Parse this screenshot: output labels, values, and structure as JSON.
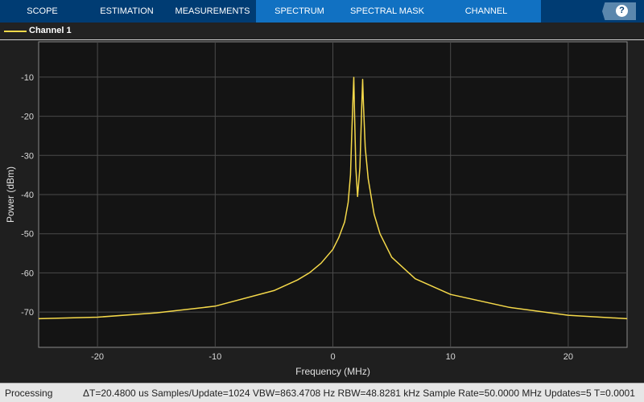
{
  "toolstrip": {
    "tabs": [
      {
        "label": "SCOPE",
        "selected": false
      },
      {
        "label": "ESTIMATION",
        "selected": false
      },
      {
        "label": "MEASUREMENTS",
        "selected": false
      },
      {
        "label": "SPECTRUM",
        "selected": true
      },
      {
        "label": "SPECTRAL MASK",
        "selected": true
      },
      {
        "label": "CHANNEL MEASUREMENTS",
        "selected": true
      }
    ],
    "help_label": "?"
  },
  "legend": {
    "entries": [
      {
        "name": "Channel 1",
        "color": "#f5d94a"
      }
    ]
  },
  "status": {
    "state": "Processing",
    "info": "ΔT=20.4800 us  Samples/Update=1024  VBW=863.4708 Hz  RBW=48.8281 kHz  Sample Rate=50.0000 MHz  Updates=5  T=0.0001"
  },
  "chart_data": {
    "type": "line",
    "xlabel": "Frequency (MHz)",
    "ylabel": "Power (dBm)",
    "xlim": [
      -25,
      25
    ],
    "ylim": [
      -79,
      -1
    ],
    "xticks": [
      -20,
      -10,
      0,
      10,
      20
    ],
    "yticks": [
      -10,
      -20,
      -30,
      -40,
      -50,
      -60,
      -70
    ],
    "grid": true,
    "background": "#141414",
    "series": [
      {
        "name": "Channel 1",
        "color": "#f5d94a",
        "x": [
          -25,
          -20,
          -15,
          -10,
          -5,
          -3,
          -2,
          -1,
          0,
          0.5,
          1,
          1.3,
          1.5,
          1.6,
          1.7,
          1.78,
          1.85,
          1.95,
          2.1,
          2.3,
          2.45,
          2.53,
          2.6,
          2.75,
          3,
          3.5,
          4,
          5,
          7,
          10,
          15,
          20,
          25
        ],
        "y": [
          -71.7,
          -71.3,
          -70.2,
          -68.5,
          -64.5,
          -61.8,
          -60,
          -57.5,
          -54,
          -51,
          -47,
          -42,
          -35,
          -25,
          -16,
          -10.1,
          -20,
          -33,
          -40.5,
          -33,
          -18,
          -10.6,
          -17,
          -28,
          -36,
          -45,
          -50,
          -56,
          -61.5,
          -65.5,
          -68.8,
          -70.8,
          -71.7
        ]
      }
    ]
  }
}
